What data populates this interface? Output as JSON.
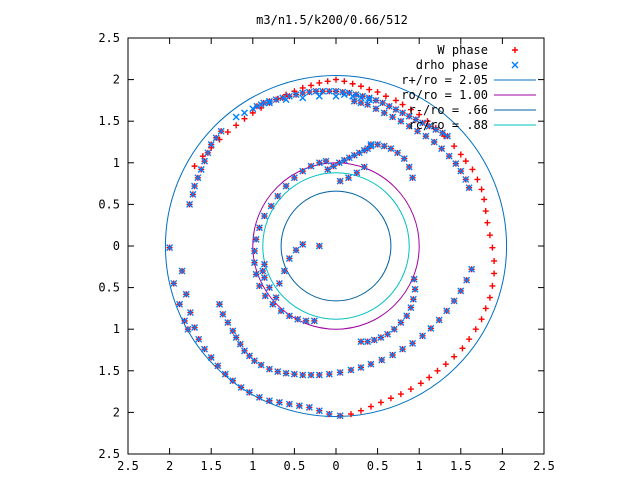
{
  "chart_data": {
    "type": "scatter",
    "title": "m3/n1.5/k200/0.66/512",
    "xlabel": "",
    "ylabel": "",
    "xlim": [
      -2.5,
      2.5
    ],
    "ylim": [
      -2.5,
      2.5
    ],
    "grid": false,
    "legend_position": "top-right",
    "x_ticks": [
      -2.5,
      -2,
      -1.5,
      -1,
      -0.5,
      0,
      0.5,
      1,
      1.5,
      2,
      2.5
    ],
    "x_tick_labels": [
      "2.5",
      "2",
      "1.5",
      "1",
      "0.5",
      "0",
      "0.5",
      "1",
      "1.5",
      "2",
      "2.5"
    ],
    "y_ticks": [
      -2.5,
      -2,
      -1.5,
      -1,
      -0.5,
      0,
      0.5,
      1,
      1.5,
      2,
      2.5
    ],
    "y_tick_labels": [
      "2.5",
      "2",
      "1.5",
      "1",
      "0.5",
      "0",
      "0.5",
      "1",
      "1.5",
      "2",
      "2.5"
    ],
    "series": [
      {
        "name": "W phase",
        "marker": "plus",
        "color": "#ff0000",
        "x": [
          -2.0,
          -1.95,
          -1.88,
          -1.82,
          -1.78,
          -1.85,
          -1.8,
          -1.75,
          -1.7,
          -1.65,
          -1.58,
          -1.5,
          -1.42,
          -1.33,
          -1.24,
          -1.14,
          -1.04,
          -0.92,
          -0.8,
          -0.68,
          -0.56,
          -0.44,
          -0.32,
          -0.2,
          -0.08,
          0.05,
          0.18,
          0.3,
          0.42,
          0.54,
          0.66,
          0.78,
          0.9,
          1.02,
          1.12,
          1.22,
          1.32,
          1.42,
          1.52,
          1.6,
          1.68,
          1.75,
          1.8,
          1.85,
          1.88,
          1.9,
          1.9,
          1.88,
          1.85,
          1.82,
          1.8,
          1.78,
          1.75,
          1.7,
          1.64,
          1.56,
          1.5,
          1.42,
          1.3,
          1.2,
          1.1,
          1.0,
          0.9,
          0.8,
          0.72,
          0.6,
          0.5,
          0.4,
          0.3,
          0.2,
          0.1,
          0.0,
          -0.1,
          -0.2,
          -0.3,
          -0.4,
          -0.5,
          -0.6,
          -0.7,
          -0.8,
          -0.9,
          -1.0,
          -1.1,
          -1.2,
          -1.3,
          -1.4,
          -1.5,
          -1.6,
          -1.7,
          -1.4,
          -1.36,
          -1.3,
          -1.24,
          -1.2,
          -1.15,
          -1.1,
          -1.04,
          -0.98,
          -0.9,
          -0.8,
          -0.7,
          -0.6,
          -0.5,
          -0.4,
          -0.3,
          -0.2,
          -0.08,
          0.05,
          0.18,
          0.3,
          0.42,
          0.55,
          0.68,
          0.8,
          0.92,
          1.04,
          1.14,
          1.24,
          1.33,
          1.42,
          1.5,
          1.57,
          1.63,
          1.6,
          1.56,
          1.5,
          1.44,
          1.36,
          1.27,
          1.18,
          1.08,
          0.98,
          0.88,
          0.78,
          0.68,
          0.58,
          0.48,
          0.38,
          0.3,
          0.22,
          -1.38,
          -1.44,
          -1.5,
          -1.54,
          -1.58,
          -1.62,
          -1.66,
          -1.7,
          -1.72,
          -1.76,
          -0.95,
          -0.87,
          -0.8,
          -0.72,
          -0.64,
          -0.56,
          -0.48,
          -0.4,
          -0.32,
          -0.24,
          -0.16,
          -0.08,
          0.0,
          0.08,
          0.16,
          0.24,
          0.32,
          0.4,
          0.48,
          0.56,
          0.64,
          0.72,
          0.8,
          0.88,
          0.96,
          1.04,
          1.12,
          1.2,
          1.28,
          1.34,
          -0.1,
          -0.03,
          0.04,
          0.1,
          0.16,
          0.22,
          0.28,
          0.34,
          0.38,
          0.42,
          0.34,
          0.25,
          0.15,
          0.05,
          0.42,
          0.5,
          0.58,
          0.66,
          0.74,
          0.82,
          0.88,
          0.92,
          0.94,
          0.95,
          0.93,
          0.9,
          0.85,
          0.78,
          0.7,
          0.62,
          0.54,
          0.46,
          0.38,
          0.3,
          -0.12,
          -0.2,
          -0.3,
          -0.4,
          -0.5,
          -0.6,
          -0.7,
          -0.78,
          -0.86,
          -0.92,
          -0.96,
          -0.98,
          -0.98,
          -0.96,
          -0.92,
          -0.85,
          -0.76,
          -0.66,
          -0.56,
          -0.46,
          -0.36,
          -0.26,
          -0.2,
          -0.4,
          -0.48,
          -0.56,
          -0.62,
          -0.68,
          -0.72,
          -0.8,
          -0.86,
          -0.88,
          -0.86
        ],
        "y": [
          -0.02,
          -0.45,
          -0.7,
          -0.9,
          -1.0,
          -0.3,
          -0.58,
          -0.8,
          -0.98,
          -1.12,
          -1.24,
          -1.34,
          -1.44,
          -1.54,
          -1.62,
          -1.7,
          -1.76,
          -1.82,
          -1.86,
          -1.88,
          -1.9,
          -1.92,
          -1.94,
          -1.98,
          -2.02,
          -2.04,
          -2.02,
          -1.98,
          -1.93,
          -1.88,
          -1.83,
          -1.78,
          -1.72,
          -1.65,
          -1.58,
          -1.5,
          -1.42,
          -1.33,
          -1.23,
          -1.12,
          -1.0,
          -0.88,
          -0.75,
          -0.62,
          -0.48,
          -0.33,
          -0.18,
          -0.02,
          0.13,
          0.28,
          0.42,
          0.56,
          0.68,
          0.8,
          0.92,
          1.02,
          1.1,
          1.2,
          1.32,
          1.42,
          1.5,
          1.58,
          1.64,
          1.7,
          1.75,
          1.8,
          1.85,
          1.88,
          1.92,
          1.95,
          1.98,
          2.0,
          1.98,
          1.96,
          1.93,
          1.9,
          1.86,
          1.82,
          1.77,
          1.72,
          1.66,
          1.6,
          1.53,
          1.45,
          1.37,
          1.28,
          1.18,
          1.08,
          0.96,
          -0.7,
          -0.82,
          -0.92,
          -1.02,
          -1.1,
          -1.18,
          -1.26,
          -1.32,
          -1.38,
          -1.43,
          -1.48,
          -1.51,
          -1.53,
          -1.54,
          -1.55,
          -1.55,
          -1.55,
          -1.54,
          -1.52,
          -1.49,
          -1.46,
          -1.42,
          -1.37,
          -1.31,
          -1.24,
          -1.17,
          -1.08,
          -0.99,
          -0.89,
          -0.78,
          -0.66,
          -0.54,
          -0.41,
          -0.28,
          0.7,
          0.8,
          0.9,
          0.99,
          1.08,
          1.17,
          1.25,
          1.32,
          1.38,
          1.44,
          1.5,
          1.55,
          1.6,
          1.65,
          1.7,
          1.72,
          1.74,
          1.38,
          1.3,
          1.22,
          1.12,
          1.02,
          0.92,
          0.82,
          0.72,
          0.62,
          0.5,
          1.68,
          1.72,
          1.74,
          1.76,
          1.78,
          1.8,
          1.82,
          1.84,
          1.85,
          1.86,
          1.86,
          1.86,
          1.86,
          1.85,
          1.84,
          1.82,
          1.8,
          1.78,
          1.75,
          1.72,
          1.68,
          1.64,
          1.6,
          1.56,
          1.52,
          1.48,
          1.44,
          1.4,
          1.36,
          1.32,
          0.92,
          0.96,
          1.0,
          1.03,
          1.06,
          1.09,
          1.12,
          1.15,
          1.17,
          1.2,
          0.95,
          0.88,
          0.82,
          0.78,
          1.22,
          1.22,
          1.2,
          1.17,
          1.12,
          1.05,
          0.95,
          0.82,
          -0.4,
          -0.52,
          -0.64,
          -0.74,
          -0.84,
          -0.92,
          -1.0,
          -1.06,
          -1.1,
          -1.13,
          -1.15,
          -1.15,
          1.02,
          1.0,
          0.96,
          0.9,
          0.82,
          0.72,
          0.6,
          0.48,
          0.36,
          0.22,
          0.08,
          -0.06,
          -0.2,
          -0.34,
          -0.48,
          -0.6,
          -0.7,
          -0.78,
          -0.84,
          -0.88,
          -0.9,
          -0.9,
          0.0,
          0.02,
          -0.05,
          -0.15,
          -0.3,
          -0.45,
          -0.62,
          -0.5,
          -0.38,
          -0.3,
          -0.22
        ]
      },
      {
        "name": "drho phase",
        "marker": "cross",
        "color": "#0080ff",
        "x": [
          -2.0,
          -1.95,
          -1.88,
          -1.82,
          -1.78,
          -1.85,
          -1.8,
          -1.75,
          -1.7,
          -1.65,
          -1.58,
          -1.5,
          -1.42,
          -1.33,
          -1.24,
          -1.14,
          -1.04,
          -0.92,
          -0.8,
          -0.68,
          -0.56,
          -0.44,
          -0.32,
          -0.2,
          -0.08,
          0.05,
          -1.4,
          -1.36,
          -1.3,
          -1.24,
          -1.2,
          -1.15,
          -1.1,
          -1.04,
          -0.98,
          -0.9,
          -0.8,
          -0.7,
          -0.6,
          -0.5,
          -0.4,
          -0.3,
          -0.2,
          -0.08,
          0.05,
          0.18,
          0.3,
          0.42,
          0.55,
          0.68,
          0.8,
          0.92,
          1.04,
          1.14,
          1.24,
          1.33,
          1.42,
          1.5,
          1.57,
          1.63,
          1.6,
          1.56,
          1.5,
          1.44,
          1.36,
          1.27,
          1.18,
          1.08,
          0.98,
          0.88,
          0.78,
          0.68,
          0.58,
          0.48,
          0.38,
          0.3,
          0.22,
          -1.38,
          -1.44,
          -1.5,
          -1.54,
          -1.58,
          -1.62,
          -1.66,
          -1.7,
          -1.72,
          -1.76,
          -0.95,
          -0.87,
          -0.8,
          -0.72,
          -0.64,
          -0.56,
          -0.48,
          -0.4,
          -0.32,
          -0.24,
          -0.16,
          -0.08,
          0.0,
          0.08,
          0.16,
          0.24,
          0.32,
          0.4,
          0.48,
          0.56,
          0.64,
          0.72,
          0.8,
          0.88,
          0.96,
          1.04,
          1.12,
          1.2,
          1.28,
          1.34,
          -0.1,
          -0.03,
          0.04,
          0.1,
          0.16,
          0.22,
          0.28,
          0.34,
          0.38,
          0.42,
          0.34,
          0.25,
          0.15,
          0.05,
          0.42,
          0.5,
          0.58,
          0.66,
          0.74,
          0.82,
          0.88,
          0.92,
          0.94,
          0.95,
          0.93,
          0.9,
          0.85,
          0.78,
          0.7,
          0.62,
          0.54,
          0.46,
          0.38,
          0.3,
          -0.12,
          -0.2,
          -0.3,
          -0.4,
          -0.5,
          -0.6,
          -0.7,
          -0.78,
          -0.86,
          -0.92,
          -0.96,
          -0.98,
          -0.98,
          -0.96,
          -0.92,
          -0.85,
          -0.76,
          -0.66,
          -0.56,
          -0.46,
          -0.36,
          -0.26,
          -0.2,
          -0.4,
          -0.48,
          -0.56,
          -0.62,
          -0.68,
          -0.72,
          -0.8,
          -0.86,
          -0.88,
          -0.86,
          -1.2,
          -1.1,
          -1.0,
          -0.9,
          -0.8,
          -0.6,
          -0.4,
          -0.2,
          0.0,
          0.1,
          0.2,
          0.3,
          0.4
        ],
        "y": [
          -0.02,
          -0.45,
          -0.7,
          -0.9,
          -1.0,
          -0.3,
          -0.58,
          -0.8,
          -0.98,
          -1.12,
          -1.24,
          -1.34,
          -1.44,
          -1.54,
          -1.62,
          -1.7,
          -1.76,
          -1.82,
          -1.86,
          -1.88,
          -1.9,
          -1.92,
          -1.94,
          -1.98,
          -2.02,
          -2.04,
          -0.7,
          -0.82,
          -0.92,
          -1.02,
          -1.1,
          -1.18,
          -1.26,
          -1.32,
          -1.38,
          -1.43,
          -1.48,
          -1.51,
          -1.53,
          -1.54,
          -1.55,
          -1.55,
          -1.55,
          -1.54,
          -1.52,
          -1.49,
          -1.46,
          -1.42,
          -1.37,
          -1.31,
          -1.24,
          -1.17,
          -1.08,
          -0.99,
          -0.89,
          -0.78,
          -0.66,
          -0.54,
          -0.41,
          -0.28,
          0.7,
          0.8,
          0.9,
          0.99,
          1.08,
          1.17,
          1.25,
          1.32,
          1.38,
          1.44,
          1.5,
          1.55,
          1.6,
          1.65,
          1.7,
          1.72,
          1.74,
          1.38,
          1.3,
          1.22,
          1.12,
          1.02,
          0.92,
          0.82,
          0.72,
          0.62,
          0.5,
          1.68,
          1.72,
          1.74,
          1.76,
          1.78,
          1.8,
          1.82,
          1.84,
          1.85,
          1.86,
          1.86,
          1.86,
          1.86,
          1.85,
          1.84,
          1.82,
          1.8,
          1.78,
          1.75,
          1.72,
          1.68,
          1.64,
          1.6,
          1.56,
          1.52,
          1.48,
          1.44,
          1.4,
          1.36,
          1.32,
          0.92,
          0.96,
          1.0,
          1.03,
          1.06,
          1.09,
          1.12,
          1.15,
          1.17,
          1.2,
          0.95,
          0.88,
          0.82,
          0.78,
          1.22,
          1.22,
          1.2,
          1.17,
          1.12,
          1.05,
          0.95,
          0.82,
          -0.4,
          -0.52,
          -0.64,
          -0.74,
          -0.84,
          -0.92,
          -1.0,
          -1.06,
          -1.1,
          -1.13,
          -1.15,
          -1.15,
          1.02,
          1.0,
          0.96,
          0.9,
          0.82,
          0.72,
          0.6,
          0.48,
          0.36,
          0.22,
          0.08,
          -0.06,
          -0.2,
          -0.34,
          -0.48,
          -0.6,
          -0.7,
          -0.78,
          -0.84,
          -0.88,
          -0.9,
          -0.9,
          0.0,
          0.02,
          -0.05,
          -0.15,
          -0.3,
          -0.45,
          -0.62,
          -0.5,
          -0.38,
          -0.3,
          -0.22,
          1.55,
          1.6,
          1.65,
          1.7,
          1.72,
          1.76,
          1.78,
          1.8,
          1.8,
          1.82,
          1.8,
          1.78,
          1.76
        ]
      }
    ],
    "circles": [
      {
        "name": "r+/ro = 2.05",
        "r": 2.05,
        "color": "#0070c0"
      },
      {
        "name": "ro/ro = 1.00",
        "r": 1.0,
        "color": "#a000a0"
      },
      {
        "name": "r-/ro = .66",
        "r": 0.66,
        "color": "#0060a0"
      },
      {
        "name": "rc/ro = .88",
        "r": 0.88,
        "color": "#00c0c0"
      }
    ]
  }
}
